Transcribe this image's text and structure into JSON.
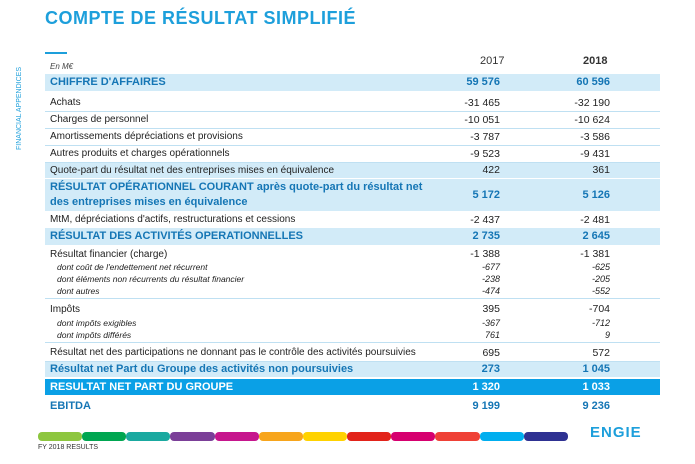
{
  "header": {
    "title": "COMPTE DE RÉSULTAT SIMPLIFIÉ",
    "side_label": "FINANCIAL APPENDICES"
  },
  "table": {
    "unit": "En M€",
    "columns": [
      "2017",
      "2018"
    ],
    "rows": [
      [
        "CHIFFRE D'AFFAIRES",
        "59 576",
        "60 596"
      ],
      [
        "Achats",
        "-31 465",
        "-32 190"
      ],
      [
        "Charges de personnel",
        "-10 051",
        "-10 624"
      ],
      [
        "Amortissements  dépréciations et provisions",
        "-3 787",
        "-3 586"
      ],
      [
        "Autres produits et charges opérationnels",
        "-9 523",
        "-9 431"
      ],
      [
        "Quote-part  du résultat net des entreprises  mises en équivalence",
        "422",
        "361"
      ],
      [
        "RÉSULTAT OPÉRATIONNEL COURANT après quote-part du résultat net des entreprises mises en équivalence",
        "5 172",
        "5 126"
      ],
      [
        "MtM, dépréciations d'actifs, restructurations  et cessions",
        "-2 437",
        "-2 481"
      ],
      [
        "RÉSULTAT DES ACTIVITÉS OPERATIONNELLES",
        "2 735",
        "2 645"
      ],
      [
        "Résultat financier (charge)",
        "-1 388",
        "-1 381"
      ],
      [
        "dont coût de l'endettement net récurrent",
        "-677",
        "-625"
      ],
      [
        "dont éléments non récurrents du résultat financier",
        "-238",
        "-205"
      ],
      [
        "dont autres",
        "-474",
        "-552"
      ],
      [
        "Impôts",
        "395",
        "-704"
      ],
      [
        "dont impôts exigibles",
        "-367",
        "-712"
      ],
      [
        "dont impôts différés",
        "761",
        "9"
      ],
      [
        "Résultat net des participations ne donnant pas le contrôle des activités poursuivies",
        "695",
        "572"
      ],
      [
        "Résultat net Part du Groupe des activités non poursuivies",
        "273",
        "1 045"
      ],
      [
        "RESULTAT NET PART DU GROUPE",
        "1 320",
        "1 033"
      ],
      [
        "EBITDA",
        "9 199",
        "9 236"
      ]
    ]
  },
  "footer": {
    "text": "FY 2018 RESULTS",
    "logo": "ENGIE"
  }
}
